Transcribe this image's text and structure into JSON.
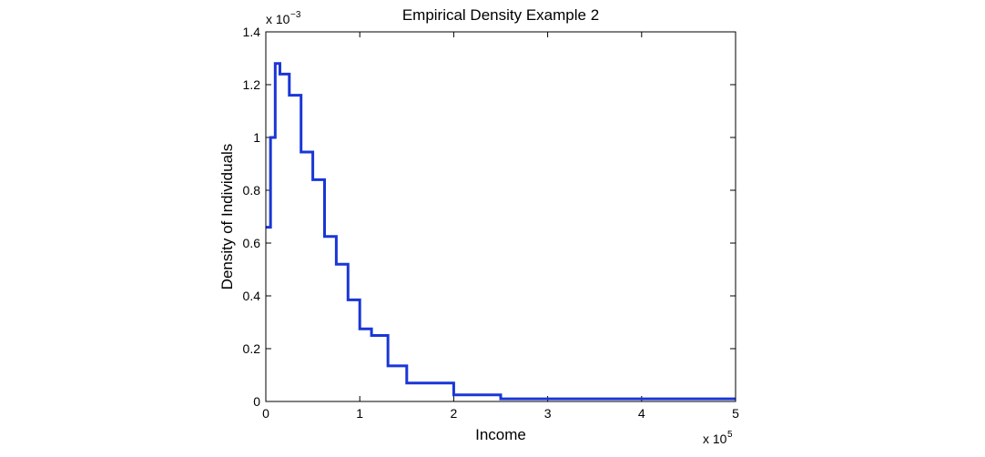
{
  "chart_data": {
    "type": "line",
    "title": "Empirical Density Example 2",
    "xlabel": "Income",
    "ylabel": "Density of Individuals",
    "x_multiplier": {
      "base": "x 10",
      "exponent": "5"
    },
    "y_multiplier": {
      "base": "x 10",
      "exponent": "−3"
    },
    "xlim": [
      0,
      5
    ],
    "ylim": [
      0,
      1.4
    ],
    "x_ticks": [
      0,
      1,
      2,
      3,
      4,
      5
    ],
    "x_tick_labels": [
      "0",
      "1",
      "2",
      "3",
      "4",
      "5"
    ],
    "y_ticks": [
      0,
      0.2,
      0.4,
      0.6,
      0.8,
      1,
      1.2,
      1.4
    ],
    "y_tick_labels": [
      "0",
      "0.2",
      "0.4",
      "0.6",
      "0.8",
      "1",
      "1.2",
      "1.4"
    ],
    "grid": false,
    "line_color": "#1a36d6",
    "series": [
      {
        "style": "step",
        "bin_edges": [
          0,
          0.05,
          0.1,
          0.15,
          0.25,
          0.375,
          0.5,
          0.625,
          0.75,
          0.875,
          1.0,
          1.125,
          1.3,
          1.5,
          2.0,
          2.5,
          5.0
        ],
        "values": [
          0.66,
          1.0,
          1.28,
          1.24,
          1.16,
          0.945,
          0.84,
          0.625,
          0.52,
          0.385,
          0.275,
          0.25,
          0.135,
          0.07,
          0.025,
          0.01
        ]
      }
    ]
  }
}
